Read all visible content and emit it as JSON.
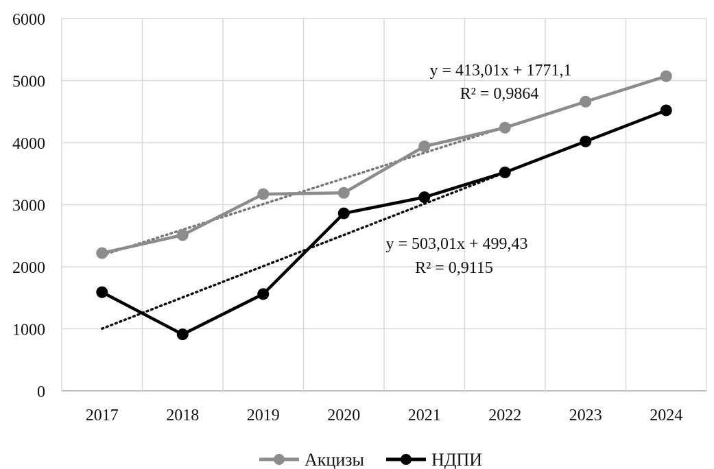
{
  "chart_data": {
    "type": "line",
    "categories": [
      "2017",
      "2018",
      "2019",
      "2020",
      "2021",
      "2022",
      "2023",
      "2024"
    ],
    "ylim": [
      0,
      6000
    ],
    "yticks": [
      "0",
      "1000",
      "2000",
      "3000",
      "4000",
      "5000",
      "6000"
    ],
    "grid": true,
    "legend_position": "bottom",
    "series": [
      {
        "name": "Акцизы",
        "color": "#8c8c8c",
        "marker": "circle",
        "values": [
          2220,
          2510,
          3170,
          3190,
          3940,
          4240,
          4660,
          5070
        ]
      },
      {
        "name": "НДПИ",
        "color": "#000000",
        "marker": "circle",
        "values": [
          1590,
          910,
          1560,
          2860,
          3120,
          3520,
          4020,
          4520
        ]
      }
    ],
    "trendlines": [
      {
        "series": "Акцизы",
        "color": "#777777",
        "style": "dotted",
        "slope": 413.01,
        "intercept": 1771.1,
        "equation": "y = 413,01x + 1771,1",
        "r2": "R² = 0,9864"
      },
      {
        "series": "НДПИ",
        "color": "#111111",
        "style": "dotted",
        "slope": 503.01,
        "intercept": 499.43,
        "equation": "y = 503,01x + 499,43",
        "r2": "R² = 0,9115"
      }
    ]
  }
}
